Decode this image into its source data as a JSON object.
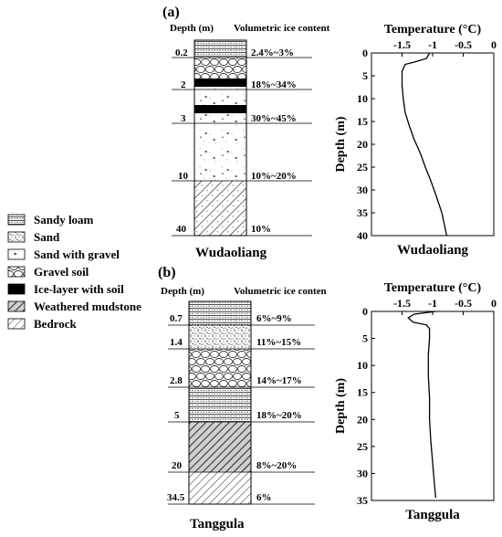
{
  "colors": {
    "ink": "#000000",
    "background": "#ffffff"
  },
  "legend": {
    "items": [
      {
        "label": "Sandy loam",
        "pattern": "sandy-loam"
      },
      {
        "label": "Sand",
        "pattern": "sand"
      },
      {
        "label": "Sand with gravel",
        "pattern": "sand-gravel"
      },
      {
        "label": "Gravel soil",
        "pattern": "gravel"
      },
      {
        "label": "Ice-layer with soil",
        "pattern": "ice"
      },
      {
        "label": "Weathered mudstone",
        "pattern": "mudstone"
      },
      {
        "label": "Bedrock",
        "pattern": "bedrock"
      }
    ]
  },
  "panel_a": {
    "label": "(a)",
    "header_depth": "Depth (m)",
    "header_ice": "Volumetric ice content",
    "site": "Wudaoliang",
    "rows": [
      {
        "depth": "0.2",
        "ice": "2.4%~3%"
      },
      {
        "depth": "2",
        "ice": "18%~34%"
      },
      {
        "depth": "3",
        "ice": "30%~45%"
      },
      {
        "depth": "10",
        "ice": "10%~20%"
      },
      {
        "depth": "40",
        "ice": "10%"
      }
    ]
  },
  "panel_b": {
    "label": "(b)",
    "header_depth": "Depth (m)",
    "header_ice": "Volumetric ice conten",
    "site": "Tanggula",
    "rows": [
      {
        "depth": "0.7",
        "ice": "6%~9%"
      },
      {
        "depth": "1.4",
        "ice": "11%~15%"
      },
      {
        "depth": "2.8",
        "ice": "14%~17%"
      },
      {
        "depth": "5",
        "ice": "18%~20%"
      },
      {
        "depth": "20",
        "ice": "8%~20%"
      },
      {
        "depth": "34.5",
        "ice": "6%"
      }
    ]
  },
  "chart_data": [
    {
      "type": "line",
      "title": "Temperature (°C)",
      "xlabel": "Temperature (°C)",
      "ylabel": "Depth (m)",
      "xlim": [
        -2,
        0
      ],
      "ylim": [
        40,
        0
      ],
      "xticks": [
        "-1.5",
        "-1",
        "-0.5",
        "0"
      ],
      "yticks": [
        "0",
        "5",
        "10",
        "15",
        "20",
        "25",
        "30",
        "35",
        "40"
      ],
      "caption": "Wudaoliang",
      "series": [
        {
          "x": [
            -1.05,
            -1.1,
            -1.3,
            -1.45,
            -1.5,
            -1.5,
            -1.48,
            -1.45,
            -1.38,
            -1.3,
            -1.2,
            -1.12,
            -1.03,
            -0.95,
            -0.85,
            -0.77
          ],
          "y": [
            0,
            1.2,
            2,
            2.5,
            4,
            7,
            10,
            13,
            16,
            19,
            22,
            25,
            28,
            31,
            35,
            40
          ]
        }
      ]
    },
    {
      "type": "line",
      "title": "Temperature (°C)",
      "xlabel": "Temperature (°C)",
      "ylabel": "Depth (m)",
      "xlim": [
        -2,
        0
      ],
      "ylim": [
        35,
        0
      ],
      "xticks": [
        "-1.5",
        "-1",
        "-0.5",
        "0"
      ],
      "yticks": [
        "0",
        "5",
        "10",
        "15",
        "20",
        "25",
        "30",
        "35"
      ],
      "caption": "Tanggula",
      "series": [
        {
          "x": [
            -0.95,
            -1.3,
            -1.4,
            -1.32,
            -1.1,
            -1.05,
            -1.05,
            -1.07,
            -1.07,
            -1.05,
            -1.05,
            -1.03,
            -1.0,
            -0.97,
            -0.95
          ],
          "y": [
            0,
            0.5,
            1.2,
            2,
            2.5,
            3.2,
            5,
            8,
            12,
            16,
            20,
            24,
            28,
            32,
            34.5
          ]
        }
      ]
    }
  ]
}
